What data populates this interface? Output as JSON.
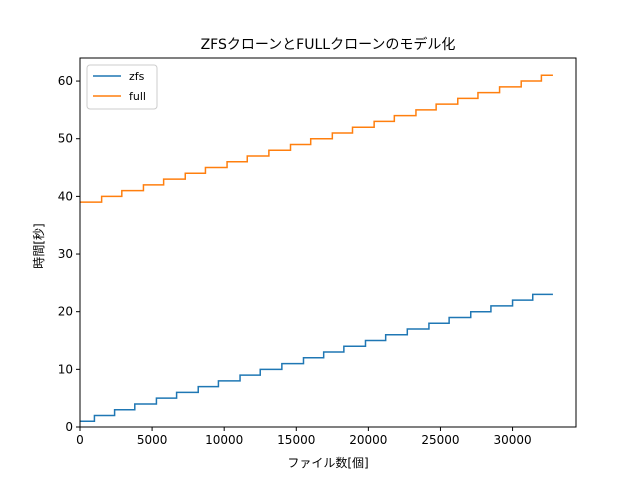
{
  "chart_data": {
    "type": "line",
    "title": "ZFSクローンとFULLクローンのモデル化",
    "xlabel": "ファイル数[個]",
    "ylabel": "時間[秒]",
    "xlim": [
      0,
      34400
    ],
    "ylim": [
      0,
      64
    ],
    "xticks": [
      0,
      5000,
      10000,
      15000,
      20000,
      25000,
      30000
    ],
    "yticks": [
      0,
      10,
      20,
      30,
      40,
      50,
      60
    ],
    "grid": false,
    "legend": "top-left",
    "series": [
      {
        "name": "zfs",
        "color": "#1f77b4",
        "step": true,
        "x": [
          0,
          1000,
          2400,
          3800,
          5300,
          6700,
          8200,
          9600,
          11100,
          12500,
          14000,
          15500,
          16900,
          18300,
          19800,
          21200,
          22700,
          24200,
          25600,
          27100,
          28500,
          30000,
          31400,
          32800
        ],
        "y": [
          1,
          2,
          3,
          4,
          5,
          6,
          7,
          8,
          9,
          10,
          11,
          12,
          13,
          14,
          15,
          16,
          17,
          18,
          19,
          20,
          21,
          22,
          23,
          23
        ]
      },
      {
        "name": "full",
        "color": "#ff7f0e",
        "step": true,
        "x": [
          0,
          1500,
          2900,
          4400,
          5800,
          7300,
          8700,
          10200,
          11600,
          13100,
          14600,
          16000,
          17500,
          18900,
          20400,
          21800,
          23300,
          24700,
          26200,
          27600,
          29100,
          30600,
          32000,
          32800
        ],
        "y": [
          39,
          40,
          41,
          42,
          43,
          44,
          45,
          46,
          47,
          48,
          49,
          50,
          51,
          52,
          53,
          54,
          55,
          56,
          57,
          58,
          59,
          60,
          61,
          61
        ]
      }
    ]
  }
}
